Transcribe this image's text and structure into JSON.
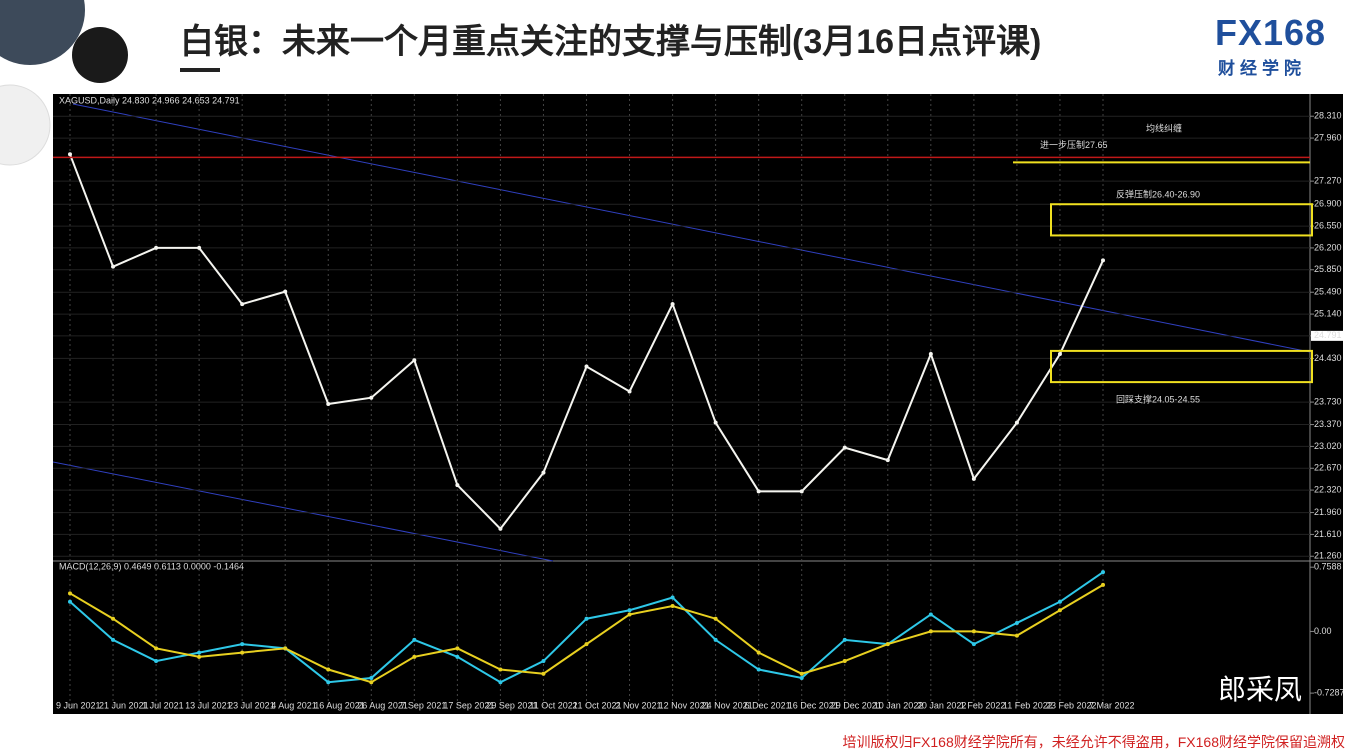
{
  "header": {
    "title": "白银：未来一个月重点关注的支撑与压制(3月16日点评课)",
    "logo": "FX168",
    "logo_sub": "财经学院"
  },
  "chart_data": [
    {
      "type": "line",
      "title": "XAGUSD,Daily 24.830 24.966 24.653 24.791",
      "color": "#f5f5f0",
      "categories": [
        "9 Jun 2021",
        "21 Jun 2021",
        "1 Jul 2021",
        "13 Jul 2021",
        "23 Jul 2021",
        "4 Aug 2021",
        "16 Aug 2021",
        "26 Aug 2021",
        "7 Sep 2021",
        "17 Sep 2021",
        "29 Sep 2021",
        "11 Oct 2021",
        "21 Oct 2021",
        "2 Nov 2021",
        "12 Nov 2021",
        "24 Nov 2021",
        "6 Dec 2021",
        "16 Dec 2021",
        "29 Dec 2021",
        "10 Jan 2022",
        "20 Jan 2022",
        "1 Feb 2022",
        "11 Feb 2022",
        "23 Feb 2022",
        "7 Mar 2022"
      ],
      "values": [
        27.7,
        25.9,
        26.2,
        26.2,
        25.3,
        25.5,
        23.7,
        23.8,
        24.4,
        22.4,
        21.7,
        22.6,
        24.3,
        23.9,
        25.3,
        23.4,
        22.3,
        22.3,
        23.0,
        22.8,
        24.5,
        22.5,
        23.4,
        24.5,
        26.0
      ],
      "ylim": [
        21.2,
        28.65
      ],
      "yticks": [
        {
          "value": 28.31,
          "label": "28.310"
        },
        {
          "value": 27.96,
          "label": "27.960"
        },
        {
          "value": 27.27,
          "label": "27.270"
        },
        {
          "value": 26.9,
          "label": "26.900"
        },
        {
          "value": 26.55,
          "label": "26.550"
        },
        {
          "value": 26.2,
          "label": "26.200"
        },
        {
          "value": 25.85,
          "label": "25.850"
        },
        {
          "value": 25.49,
          "label": "25.490"
        },
        {
          "value": 25.14,
          "label": "25.140"
        },
        24.791,
        {
          "value": 24.43,
          "label": "24.430"
        },
        {
          "value": 23.73,
          "label": "23.730"
        },
        {
          "value": 23.37,
          "label": "23.370"
        },
        {
          "value": 23.02,
          "label": "23.020"
        },
        {
          "value": 22.67,
          "label": "22.670"
        },
        {
          "value": 22.32,
          "label": "22.320"
        },
        {
          "value": 21.96,
          "label": "21.960"
        },
        {
          "value": 21.61,
          "label": "21.610"
        },
        {
          "value": 21.26,
          "label": "21.260"
        }
      ],
      "grid": true
    },
    {
      "type": "line",
      "title": "MACD(12,26,9) 0.4649 0.6113 0.0000 -0.1464",
      "series": [
        {
          "color": "#2ec8e8",
          "values": [
            0.35,
            -0.1,
            -0.35,
            -0.25,
            -0.15,
            -0.2,
            -0.6,
            -0.55,
            -0.1,
            -0.3,
            -0.6,
            -0.35,
            0.15,
            0.25,
            0.4,
            -0.1,
            -0.45,
            -0.55,
            -0.1,
            -0.15,
            0.2,
            -0.15,
            0.1,
            0.35,
            0.7
          ]
        },
        {
          "color": "#e8d020",
          "values": [
            0.45,
            0.15,
            -0.2,
            -0.3,
            -0.25,
            -0.2,
            -0.45,
            -0.6,
            -0.3,
            -0.2,
            -0.45,
            -0.5,
            -0.15,
            0.2,
            0.3,
            0.15,
            -0.25,
            -0.5,
            -0.35,
            -0.15,
            0.0,
            0.0,
            -0.05,
            0.25,
            0.55
          ]
        }
      ],
      "ylim": [
        -0.94,
        0.82
      ],
      "yticks": [
        0.7588,
        {
          "value": 0,
          "label": "0.00"
        },
        -0.7287
      ]
    }
  ],
  "annotations": {
    "note": "均线纠缠",
    "resistance_line": {
      "label": "进一步压制27.65",
      "value": 27.65
    },
    "resistance_zone": {
      "label": "反弹压制26.40-26.90",
      "low": 26.4,
      "high": 26.9
    },
    "support_zone": {
      "label": "回踩支撑24.05-24.55",
      "low": 24.05,
      "high": 24.55
    }
  },
  "footer": "培训版权归FX168财经学院所有，未经允许不得盗用，FX168财经学院保留追溯权",
  "watermark": "郎采凤"
}
